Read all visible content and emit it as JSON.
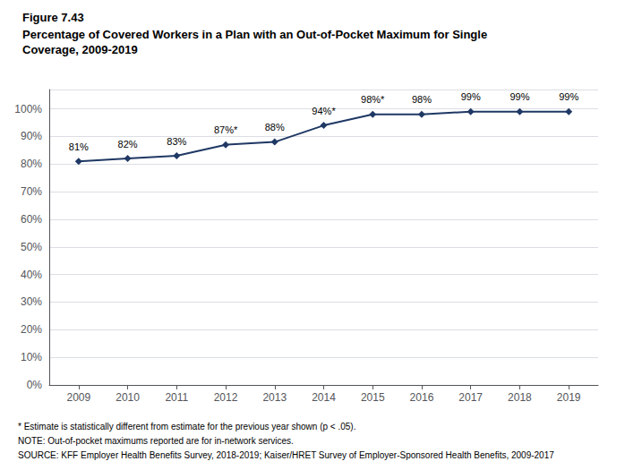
{
  "chart_data": {
    "type": "line",
    "title": "Figure 7.43",
    "subtitle": "Percentage of Covered Workers in a Plan with an Out-of-Pocket Maximum for Single\nCoverage, 2009-2019",
    "x": [
      2009,
      2010,
      2011,
      2012,
      2013,
      2014,
      2015,
      2016,
      2017,
      2018,
      2019
    ],
    "values": [
      81,
      82,
      83,
      87,
      88,
      94,
      98,
      98,
      99,
      99,
      99
    ],
    "value_labels": [
      "81%",
      "82%",
      "83%",
      "87%*",
      "88%",
      "94%*",
      "98%*",
      "98%",
      "99%",
      "99%",
      "99%"
    ],
    "data_labels": true,
    "color": "#1f3864",
    "marker": "diamond",
    "xlim": [
      2008.4,
      2019.6
    ],
    "xticks": [
      2009,
      2010,
      2011,
      2012,
      2013,
      2014,
      2015,
      2016,
      2017,
      2018,
      2019
    ],
    "ylim": [
      0,
      107
    ],
    "yticks": [
      {
        "value": 0,
        "label": "0%"
      },
      {
        "value": 10,
        "label": "10%"
      },
      {
        "value": 20,
        "label": "20%"
      },
      {
        "value": 30,
        "label": "30%"
      },
      {
        "value": 40,
        "label": "40%"
      },
      {
        "value": 50,
        "label": "50%"
      },
      {
        "value": 60,
        "label": "60%"
      },
      {
        "value": 70,
        "label": "70%"
      },
      {
        "value": 80,
        "label": "80%"
      },
      {
        "value": 90,
        "label": "90%"
      },
      {
        "value": 100,
        "label": "100%"
      }
    ],
    "grid": true,
    "annotations": [
      "* Estimate is statistically different from estimate for the previous year shown (p < .05).",
      "NOTE: Out-of-pocket maximums reported are for in-network services.",
      "SOURCE: KFF Employer Health Benefits Survey, 2018-2019; Kaiser/HRET Survey of Employer-Sponsored Health Benefits, 2009-2017"
    ]
  }
}
